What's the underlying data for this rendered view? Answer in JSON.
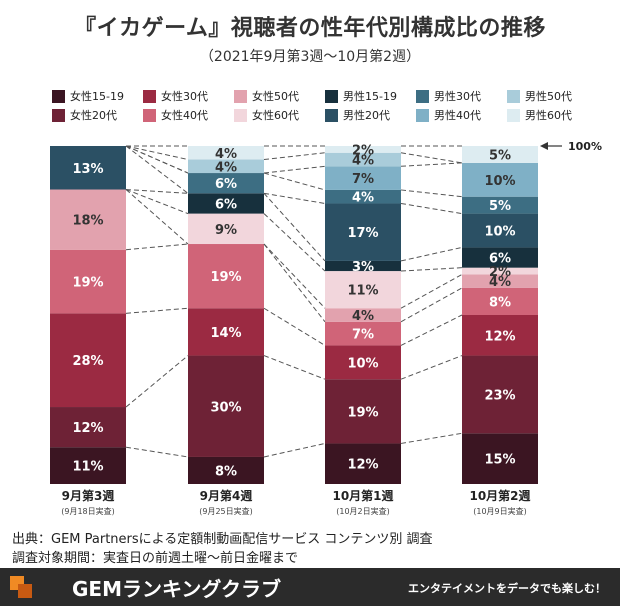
{
  "header": {
    "title": "『イカゲーム』視聴者の性年代別構成比の推移",
    "subtitle": "（2021年9月第3週〜10月第2週）"
  },
  "source": {
    "line1": "出典：GEM Partnersによる定額制動画配信サービス コンテンツ別 調査",
    "line2": "調査対象期間：実査日の前週土曜〜前日金曜まで"
  },
  "footer": {
    "brand": "GEMランキングクラブ",
    "tagline": "エンタテイメントをデータでも楽しむ！"
  },
  "chart_data": {
    "type": "bar",
    "stacked": true,
    "categories": [
      "9月第3週",
      "9月第4週",
      "10月第1週",
      "10月第2週"
    ],
    "category_notes": [
      "(9月18日実査)",
      "(9月25日実査)",
      "(10月2日実査)",
      "(10月9日実査)"
    ],
    "total_label": "100%",
    "series": [
      {
        "name": "女性15-19",
        "color": "#3b1522",
        "values": [
          11,
          8,
          12,
          15
        ]
      },
      {
        "name": "女性20代",
        "color": "#6e2236",
        "values": [
          12,
          30,
          19,
          23
        ]
      },
      {
        "name": "女性30代",
        "color": "#9b2a42",
        "values": [
          28,
          14,
          10,
          12
        ]
      },
      {
        "name": "女性40代",
        "color": "#d06478",
        "values": [
          19,
          19,
          7,
          8
        ]
      },
      {
        "name": "女性50代",
        "color": "#e2a2ae",
        "values": [
          18,
          0,
          4,
          4
        ]
      },
      {
        "name": "女性60代",
        "color": "#f2d6dc",
        "values": [
          0,
          9,
          11,
          2
        ]
      },
      {
        "name": "男性15-19",
        "color": "#17303d",
        "values": [
          0,
          6,
          3,
          6
        ]
      },
      {
        "name": "男性20代",
        "color": "#2b5064",
        "values": [
          13,
          0,
          17,
          10
        ]
      },
      {
        "name": "男性30代",
        "color": "#3d6e83",
        "values": [
          0,
          6,
          4,
          5
        ]
      },
      {
        "name": "男性40代",
        "color": "#7fb0c6",
        "values": [
          0,
          0,
          7,
          10
        ]
      },
      {
        "name": "男性50代",
        "color": "#a9ccda",
        "values": [
          0,
          4,
          4,
          0
        ]
      },
      {
        "name": "男性60代",
        "color": "#ddecf1",
        "values": [
          0,
          4,
          2,
          5
        ]
      }
    ],
    "data_labels": [
      [
        "11%",
        "8%",
        "12%",
        "15%"
      ],
      [
        "12%",
        "30%",
        "19%",
        "23%"
      ],
      [
        "28%",
        "14%",
        "10%",
        "12%"
      ],
      [
        "19%",
        "19%",
        "7%",
        "8%"
      ],
      [
        "18%",
        "",
        "4%",
        "4%"
      ],
      [
        "",
        "9%",
        "11%",
        "2%"
      ],
      [
        "",
        "6%",
        "3%",
        "6%"
      ],
      [
        "13%",
        "",
        "17%",
        "10%"
      ],
      [
        "",
        "6%",
        "4%",
        "5%"
      ],
      [
        "",
        "",
        "7%",
        "10%"
      ],
      [
        "",
        "4%",
        "4%",
        ""
      ],
      [
        "",
        "4%",
        "2%",
        "5%"
      ]
    ],
    "legend_placement": "top",
    "grid": false
  }
}
